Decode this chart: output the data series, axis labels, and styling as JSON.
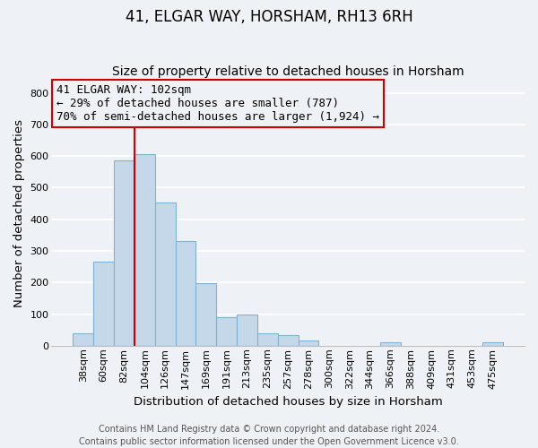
{
  "title": "41, ELGAR WAY, HORSHAM, RH13 6RH",
  "subtitle": "Size of property relative to detached houses in Horsham",
  "xlabel": "Distribution of detached houses by size in Horsham",
  "ylabel": "Number of detached properties",
  "bar_labels": [
    "38sqm",
    "60sqm",
    "82sqm",
    "104sqm",
    "126sqm",
    "147sqm",
    "169sqm",
    "191sqm",
    "213sqm",
    "235sqm",
    "257sqm",
    "278sqm",
    "300sqm",
    "322sqm",
    "344sqm",
    "366sqm",
    "388sqm",
    "409sqm",
    "431sqm",
    "453sqm",
    "475sqm"
  ],
  "bar_values": [
    38,
    265,
    585,
    605,
    452,
    330,
    197,
    90,
    100,
    38,
    32,
    15,
    0,
    0,
    0,
    12,
    0,
    0,
    0,
    0,
    10
  ],
  "bar_color": "#c5d8ea",
  "bar_edgecolor": "#7fb3d0",
  "vline_x_idx": 3,
  "vline_color": "#cc0000",
  "annotation_line1": "41 ELGAR WAY: 102sqm",
  "annotation_line2": "← 29% of detached houses are smaller (787)",
  "annotation_line3": "70% of semi-detached houses are larger (1,924) →",
  "annotation_box_color": "#cc0000",
  "ylim": [
    0,
    840
  ],
  "yticks": [
    0,
    100,
    200,
    300,
    400,
    500,
    600,
    700,
    800
  ],
  "footer1": "Contains HM Land Registry data © Crown copyright and database right 2024.",
  "footer2": "Contains public sector information licensed under the Open Government Licence v3.0.",
  "background_color": "#eef2f6",
  "grid_color": "#ffffff",
  "title_fontsize": 12,
  "subtitle_fontsize": 10,
  "label_fontsize": 9.5,
  "tick_fontsize": 8,
  "footer_fontsize": 7,
  "annot_fontsize": 9
}
